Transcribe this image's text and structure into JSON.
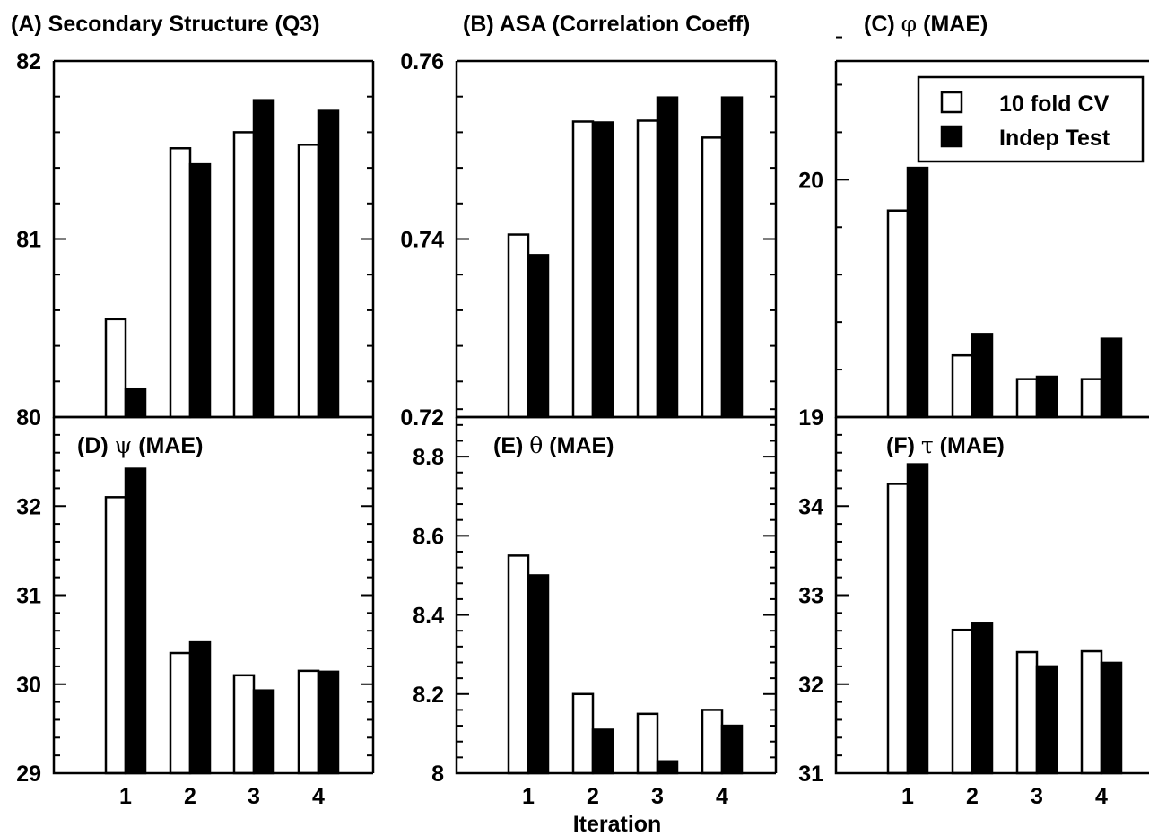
{
  "xlabel": "Iteration",
  "legend": {
    "cv_label": "10 fold CV",
    "test_label": "Indep Test",
    "cv_color": "#ffffff",
    "test_color": "#000000",
    "position": "top-right of panel C"
  },
  "chart_data": [
    {
      "type": "bar",
      "panel": "A",
      "title_prefix": "(A) ",
      "title_symbol": "",
      "title_main": "Secondary Structure (Q3)",
      "categories": [
        "1",
        "2",
        "3",
        "4"
      ],
      "ylim": [
        80,
        82
      ],
      "yticks": [
        80,
        81,
        82
      ],
      "ytick_labels": [
        "80",
        "81",
        "82"
      ],
      "series": [
        {
          "name": "10 fold CV",
          "values": [
            80.55,
            81.51,
            81.6,
            81.53
          ]
        },
        {
          "name": "Indep Test",
          "values": [
            80.16,
            81.42,
            81.78,
            81.72
          ]
        }
      ]
    },
    {
      "type": "bar",
      "panel": "B",
      "title_prefix": "(B) ",
      "title_symbol": "",
      "title_main": "ASA (Correlation Coeff)",
      "categories": [
        "1",
        "2",
        "3",
        "4"
      ],
      "ylim": [
        0.72,
        0.76
      ],
      "yticks": [
        0.72,
        0.74,
        0.76
      ],
      "ytick_labels": [
        "0.72",
        "0.74",
        "0.76"
      ],
      "series": [
        {
          "name": "10 fold CV",
          "values": [
            0.7405,
            0.7532,
            0.7533,
            0.7514
          ]
        },
        {
          "name": "Indep Test",
          "values": [
            0.7382,
            0.7531,
            0.7559,
            0.7559
          ]
        }
      ]
    },
    {
      "type": "bar",
      "panel": "C",
      "title_prefix": "(C) ",
      "title_symbol": "φ",
      "title_main": " (MAE)",
      "categories": [
        "1",
        "2",
        "3",
        "4"
      ],
      "ylim": [
        19,
        20.5
      ],
      "yticks": [
        19,
        20
      ],
      "ytick_labels": [
        "19",
        "20"
      ],
      "series": [
        {
          "name": "10 fold CV",
          "values": [
            19.87,
            19.26,
            19.16,
            19.16
          ]
        },
        {
          "name": "Indep Test",
          "values": [
            20.05,
            19.35,
            19.17,
            19.33
          ]
        }
      ]
    },
    {
      "type": "bar",
      "panel": "D",
      "title_prefix": "(D) ",
      "title_symbol": "ψ",
      "title_main": " (MAE)",
      "categories": [
        "1",
        "2",
        "3",
        "4"
      ],
      "ylim": [
        29,
        33
      ],
      "yticks": [
        29,
        30,
        31,
        32
      ],
      "ytick_labels": [
        "29",
        "30",
        "31",
        "32"
      ],
      "series": [
        {
          "name": "10 fold CV",
          "values": [
            32.1,
            30.35,
            30.1,
            30.15
          ]
        },
        {
          "name": "Indep Test",
          "values": [
            32.42,
            30.47,
            29.93,
            30.14
          ]
        }
      ]
    },
    {
      "type": "bar",
      "panel": "E",
      "title_prefix": "(E) ",
      "title_symbol": "θ",
      "title_main": " (MAE)",
      "categories": [
        "1",
        "2",
        "3",
        "4"
      ],
      "ylim": [
        8.0,
        8.9
      ],
      "yticks": [
        8.0,
        8.2,
        8.4,
        8.6,
        8.8
      ],
      "ytick_labels": [
        "8",
        "8.2",
        "8.4",
        "8.6",
        "8.8"
      ],
      "series": [
        {
          "name": "10 fold CV",
          "values": [
            8.55,
            8.2,
            8.15,
            8.16
          ]
        },
        {
          "name": "Indep Test",
          "values": [
            8.5,
            8.11,
            8.03,
            8.12
          ]
        }
      ]
    },
    {
      "type": "bar",
      "panel": "F",
      "title_prefix": "(F) ",
      "title_symbol": "τ",
      "title_main": " (MAE)",
      "categories": [
        "1",
        "2",
        "3",
        "4"
      ],
      "ylim": [
        31,
        35
      ],
      "yticks": [
        31,
        32,
        33,
        34
      ],
      "ytick_labels": [
        "31",
        "32",
        "33",
        "34"
      ],
      "series": [
        {
          "name": "10 fold CV",
          "values": [
            34.25,
            32.61,
            32.36,
            32.37
          ]
        },
        {
          "name": "Indep Test",
          "values": [
            34.47,
            32.69,
            32.2,
            32.24
          ]
        }
      ]
    }
  ]
}
